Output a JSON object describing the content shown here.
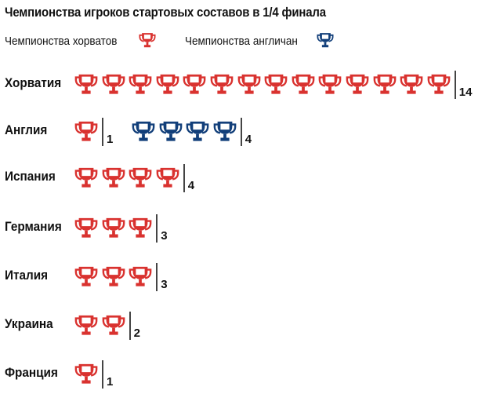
{
  "chart_data": {
    "type": "pictogram",
    "title": "Чемпионства игроков стартовых составов в 1/4 финала",
    "legend": [
      {
        "label": "Чемпионства хорватов",
        "color": "#d9322f",
        "series": "croatian"
      },
      {
        "label": "Чемпионства англичан",
        "color": "#123f7a",
        "series": "english"
      }
    ],
    "categories": [
      "Хорватия",
      "Англия",
      "Испания",
      "Германия",
      "Италия",
      "Украина",
      "Франция"
    ],
    "series": [
      {
        "name": "Чемпионства хорватов",
        "values": [
          14,
          1,
          4,
          3,
          3,
          2,
          1
        ]
      },
      {
        "name": "Чемпионства англичан",
        "values": [
          0,
          4,
          0,
          0,
          0,
          0,
          0
        ]
      }
    ],
    "groups": [
      [
        {
          "series": 0,
          "count": 14,
          "label": "14"
        }
      ],
      [
        {
          "series": 0,
          "count": 1,
          "label": "1"
        },
        {
          "series": 1,
          "count": 4,
          "label": "4"
        }
      ],
      [
        {
          "series": 0,
          "count": 4,
          "label": "4"
        }
      ],
      [
        {
          "series": 0,
          "count": 3,
          "label": "3"
        }
      ],
      [
        {
          "series": 0,
          "count": 3,
          "label": "3"
        }
      ],
      [
        {
          "series": 0,
          "count": 2,
          "label": "2"
        }
      ],
      [
        {
          "series": 0,
          "count": 1,
          "label": "1"
        }
      ]
    ]
  }
}
